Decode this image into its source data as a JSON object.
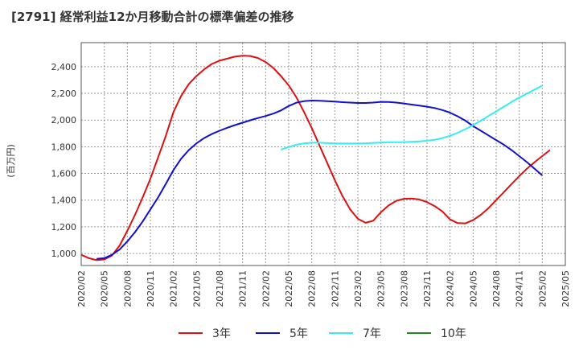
{
  "title": "[2791]  経常利益12か月移動合計の標準偏差の推移",
  "chart_data": {
    "type": "line",
    "title": "[2791]  経常利益12か月移動合計の標準偏差の推移",
    "ylabel": "(百万円)",
    "xlabel": "",
    "ylim": [
      910,
      2580
    ],
    "yticks": [
      1000,
      1200,
      1400,
      1600,
      1800,
      2000,
      2200,
      2400
    ],
    "ytick_labels": [
      "1,000",
      "1,200",
      "1,400",
      "1,600",
      "1,800",
      "2,000",
      "2,200",
      "2,400"
    ],
    "xlim": [
      "2020-02",
      "2025-05"
    ],
    "xticks": [
      "2020/02",
      "2020/05",
      "2020/08",
      "2020/11",
      "2021/02",
      "2021/05",
      "2021/08",
      "2021/11",
      "2022/02",
      "2022/05",
      "2022/08",
      "2022/11",
      "2023/02",
      "2023/05",
      "2023/08",
      "2023/11",
      "2024/02",
      "2024/05",
      "2024/08",
      "2024/11",
      "2025/02",
      "2025/05"
    ],
    "grid": true,
    "legend_position": "bottom",
    "series": [
      {
        "name": "3年",
        "color": "#dd1111",
        "points": [
          [
            "2020-02",
            990
          ],
          [
            "2020-03",
            965
          ],
          [
            "2020-04",
            950
          ],
          [
            "2020-05",
            955
          ],
          [
            "2020-06",
            985
          ],
          [
            "2020-07",
            1060
          ],
          [
            "2020-08",
            1170
          ],
          [
            "2020-09",
            1290
          ],
          [
            "2020-10",
            1420
          ],
          [
            "2020-11",
            1560
          ],
          [
            "2020-12",
            1720
          ],
          [
            "2021-01",
            1880
          ],
          [
            "2021-02",
            2060
          ],
          [
            "2021-03",
            2180
          ],
          [
            "2021-04",
            2270
          ],
          [
            "2021-05",
            2330
          ],
          [
            "2021-06",
            2380
          ],
          [
            "2021-07",
            2420
          ],
          [
            "2021-08",
            2445
          ],
          [
            "2021-09",
            2460
          ],
          [
            "2021-10",
            2475
          ],
          [
            "2021-11",
            2482
          ],
          [
            "2021-12",
            2480
          ],
          [
            "2022-01",
            2465
          ],
          [
            "2022-02",
            2435
          ],
          [
            "2022-03",
            2390
          ],
          [
            "2022-04",
            2330
          ],
          [
            "2022-05",
            2260
          ],
          [
            "2022-06",
            2170
          ],
          [
            "2022-07",
            2060
          ],
          [
            "2022-08",
            1940
          ],
          [
            "2022-09",
            1810
          ],
          [
            "2022-10",
            1680
          ],
          [
            "2022-11",
            1550
          ],
          [
            "2022-12",
            1430
          ],
          [
            "2023-01",
            1330
          ],
          [
            "2023-02",
            1260
          ],
          [
            "2023-03",
            1230
          ],
          [
            "2023-04",
            1245
          ],
          [
            "2023-05",
            1310
          ],
          [
            "2023-06",
            1360
          ],
          [
            "2023-07",
            1395
          ],
          [
            "2023-08",
            1410
          ],
          [
            "2023-09",
            1412
          ],
          [
            "2023-10",
            1405
          ],
          [
            "2023-11",
            1385
          ],
          [
            "2023-12",
            1355
          ],
          [
            "2024-01",
            1315
          ],
          [
            "2024-02",
            1255
          ],
          [
            "2024-03",
            1228
          ],
          [
            "2024-04",
            1226
          ],
          [
            "2024-05",
            1250
          ],
          [
            "2024-06",
            1290
          ],
          [
            "2024-07",
            1340
          ],
          [
            "2024-08",
            1400
          ],
          [
            "2024-09",
            1460
          ],
          [
            "2024-10",
            1520
          ],
          [
            "2024-11",
            1580
          ],
          [
            "2024-12",
            1635
          ],
          [
            "2025-01",
            1685
          ],
          [
            "2025-02",
            1730
          ],
          [
            "2025-03",
            1775
          ]
        ]
      },
      {
        "name": "5年",
        "color": "#1111cc",
        "points": [
          [
            "2020-04",
            960
          ],
          [
            "2020-05",
            965
          ],
          [
            "2020-06",
            990
          ],
          [
            "2020-07",
            1030
          ],
          [
            "2020-08",
            1090
          ],
          [
            "2020-09",
            1160
          ],
          [
            "2020-10",
            1240
          ],
          [
            "2020-11",
            1330
          ],
          [
            "2020-12",
            1420
          ],
          [
            "2021-01",
            1520
          ],
          [
            "2021-02",
            1625
          ],
          [
            "2021-03",
            1710
          ],
          [
            "2021-04",
            1775
          ],
          [
            "2021-05",
            1825
          ],
          [
            "2021-06",
            1865
          ],
          [
            "2021-07",
            1895
          ],
          [
            "2021-08",
            1920
          ],
          [
            "2021-09",
            1942
          ],
          [
            "2021-10",
            1962
          ],
          [
            "2021-11",
            1980
          ],
          [
            "2021-12",
            1998
          ],
          [
            "2022-01",
            2015
          ],
          [
            "2022-02",
            2030
          ],
          [
            "2022-03",
            2048
          ],
          [
            "2022-04",
            2072
          ],
          [
            "2022-05",
            2105
          ],
          [
            "2022-06",
            2130
          ],
          [
            "2022-07",
            2142
          ],
          [
            "2022-08",
            2146
          ],
          [
            "2022-09",
            2145
          ],
          [
            "2022-10",
            2142
          ],
          [
            "2022-11",
            2138
          ],
          [
            "2022-12",
            2134
          ],
          [
            "2023-01",
            2131
          ],
          [
            "2023-02",
            2128
          ],
          [
            "2023-03",
            2128
          ],
          [
            "2023-04",
            2131
          ],
          [
            "2023-05",
            2136
          ],
          [
            "2023-06",
            2135
          ],
          [
            "2023-07",
            2131
          ],
          [
            "2023-08",
            2124
          ],
          [
            "2023-09",
            2116
          ],
          [
            "2023-10",
            2108
          ],
          [
            "2023-11",
            2100
          ],
          [
            "2023-12",
            2090
          ],
          [
            "2024-01",
            2075
          ],
          [
            "2024-02",
            2055
          ],
          [
            "2024-03",
            2028
          ],
          [
            "2024-04",
            1995
          ],
          [
            "2024-05",
            1955
          ],
          [
            "2024-06",
            1920
          ],
          [
            "2024-07",
            1885
          ],
          [
            "2024-08",
            1850
          ],
          [
            "2024-09",
            1815
          ],
          [
            "2024-10",
            1775
          ],
          [
            "2024-11",
            1730
          ],
          [
            "2024-12",
            1685
          ],
          [
            "2025-01",
            1635
          ],
          [
            "2025-02",
            1585
          ]
        ]
      },
      {
        "name": "7年",
        "color": "#33eeee",
        "points": [
          [
            "2022-04",
            1778
          ],
          [
            "2022-05",
            1798
          ],
          [
            "2022-06",
            1815
          ],
          [
            "2022-07",
            1825
          ],
          [
            "2022-08",
            1830
          ],
          [
            "2022-09",
            1830
          ],
          [
            "2022-10",
            1827
          ],
          [
            "2022-11",
            1825
          ],
          [
            "2022-12",
            1824
          ],
          [
            "2023-01",
            1824
          ],
          [
            "2023-02",
            1825
          ],
          [
            "2023-03",
            1826
          ],
          [
            "2023-04",
            1829
          ],
          [
            "2023-05",
            1832
          ],
          [
            "2023-06",
            1834
          ],
          [
            "2023-07",
            1834
          ],
          [
            "2023-08",
            1835
          ],
          [
            "2023-09",
            1837
          ],
          [
            "2023-10",
            1840
          ],
          [
            "2023-11",
            1845
          ],
          [
            "2023-12",
            1852
          ],
          [
            "2024-01",
            1865
          ],
          [
            "2024-02",
            1882
          ],
          [
            "2024-03",
            1905
          ],
          [
            "2024-04",
            1932
          ],
          [
            "2024-05",
            1962
          ],
          [
            "2024-06",
            1995
          ],
          [
            "2024-07",
            2030
          ],
          [
            "2024-08",
            2065
          ],
          [
            "2024-09",
            2100
          ],
          [
            "2024-10",
            2135
          ],
          [
            "2024-11",
            2168
          ],
          [
            "2024-12",
            2198
          ],
          [
            "2025-01",
            2228
          ],
          [
            "2025-02",
            2258
          ]
        ]
      },
      {
        "name": "10年",
        "color": "#228822",
        "points": []
      }
    ]
  }
}
